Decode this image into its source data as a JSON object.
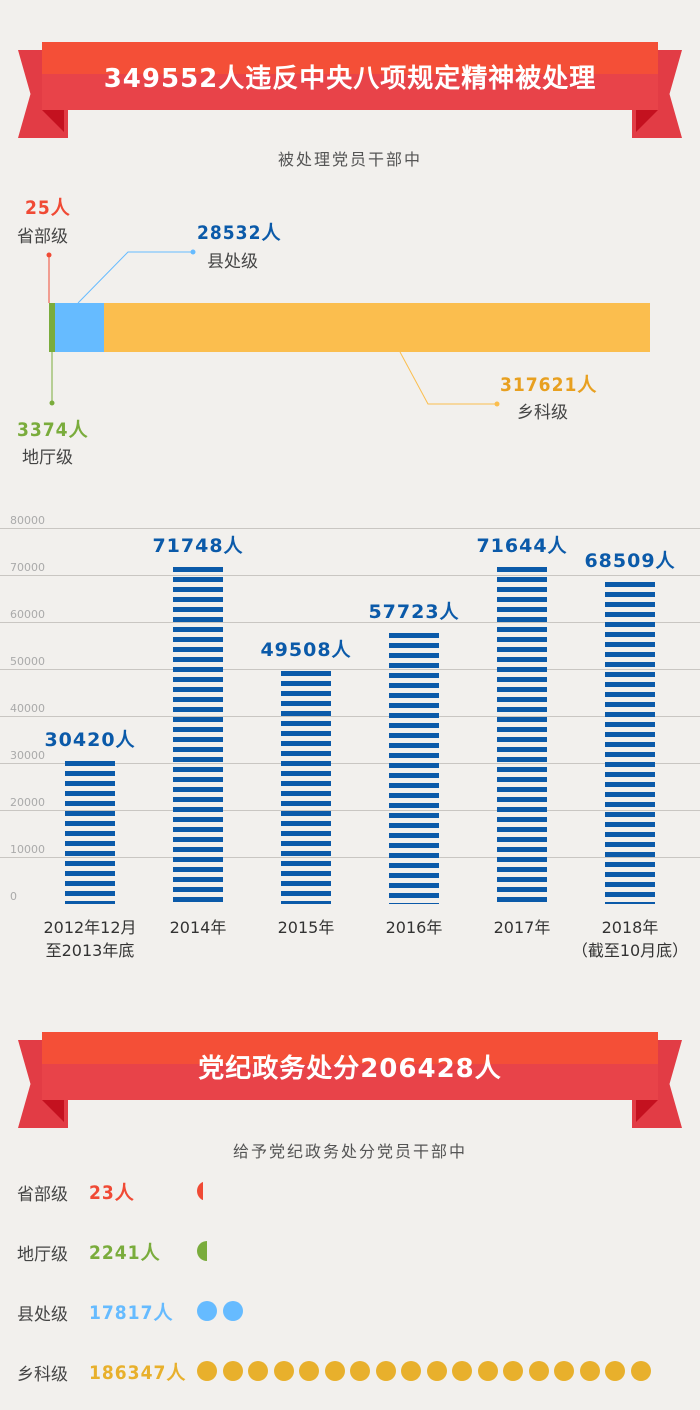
{
  "section1": {
    "title": "349552人违反中央八项规定精神被处理",
    "subtitle": "被处理党员干部中",
    "breakdown": [
      {
        "count": "25人",
        "level": "省部级",
        "value": 25,
        "color": "#f04a35"
      },
      {
        "count": "3374人",
        "level": "地厅级",
        "value": 3374,
        "color": "#7aac3c"
      },
      {
        "count": "28532人",
        "level": "县处级",
        "value": 28532,
        "color": "#66bbff"
      },
      {
        "count": "317621人",
        "level": "乡科级",
        "value": 317621,
        "color": "#fbbe4e"
      }
    ],
    "label_colors": {
      "provincial": "#f04a35",
      "prefecture": "#7aac3c",
      "county": "#0b5aa9",
      "township": "#e8a020"
    }
  },
  "chart_data": {
    "type": "bar",
    "categories": [
      "2012年12月\n至2013年底",
      "2014年",
      "2015年",
      "2016年",
      "2017年",
      "2018年\n（截至10月底）"
    ],
    "category_lines": [
      [
        "2012年12月",
        "至2013年底"
      ],
      [
        "2014年"
      ],
      [
        "2015年"
      ],
      [
        "2016年"
      ],
      [
        "2017年"
      ],
      [
        "2018年",
        "（截至10月底）"
      ]
    ],
    "values": [
      30420,
      71748,
      49508,
      57723,
      71644,
      68509
    ],
    "value_labels": [
      "30420人",
      "71748人",
      "49508人",
      "57723人",
      "71644人",
      "68509人"
    ],
    "yticks": [
      "80000",
      "70000",
      "60000",
      "50000",
      "40000",
      "30000",
      "20000",
      "10000",
      "0"
    ],
    "ylim": [
      0,
      80000
    ],
    "grid": true,
    "color": "#0b5aa9"
  },
  "section2": {
    "title": "党纪政务处分206428人",
    "subtitle": "给予党纪政务处分党员干部中",
    "rows": [
      {
        "level": "省部级",
        "count": "23人",
        "value": 23,
        "dots": 0.3,
        "color": "#f04a35"
      },
      {
        "level": "地厅级",
        "count": "2241人",
        "value": 2241,
        "dots": 0.5,
        "color": "#7aac3c"
      },
      {
        "level": "县处级",
        "count": "17817人",
        "value": 17817,
        "dots": 2,
        "color": "#66bbff"
      },
      {
        "level": "乡科级",
        "count": "186347人",
        "value": 186347,
        "dots": 18,
        "color": "#e8b02c"
      }
    ]
  }
}
